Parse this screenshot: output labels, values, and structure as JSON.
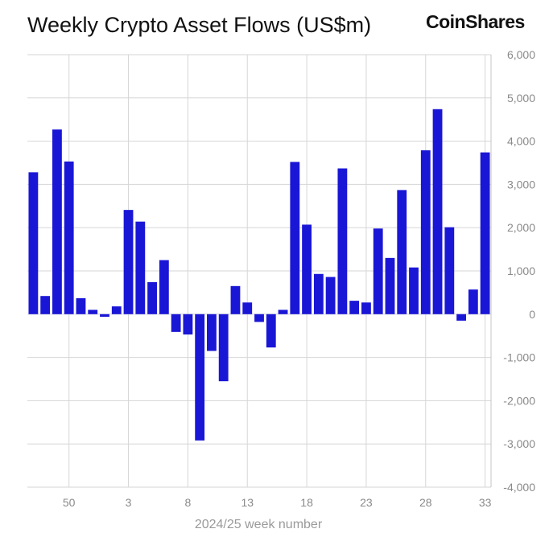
{
  "title": "Weekly Crypto Asset Flows (US$m)",
  "brand": "CoinShares",
  "chart_data": {
    "type": "bar",
    "title": "Weekly Crypto Asset Flows (US$m)",
    "xlabel": "2024/25 week number",
    "ylabel": "",
    "ylim": [
      -4000,
      6000
    ],
    "y_ticks": [
      6000,
      5000,
      4000,
      3000,
      2000,
      1000,
      0,
      -1000,
      -2000,
      -3000,
      -4000
    ],
    "y_tick_labels": [
      "6,000",
      "5,000",
      "4,000",
      "3,000",
      "2,000",
      "1,000",
      "0",
      "-1,000",
      "-2,000",
      "-3,000",
      "-4,000"
    ],
    "y_axis_position": "right",
    "x_tick_labels": [
      "50",
      "3",
      "8",
      "13",
      "18",
      "23",
      "28",
      "33"
    ],
    "categories": [
      "47",
      "48",
      "49",
      "50",
      "51",
      "52",
      "1",
      "2",
      "3",
      "4",
      "5",
      "6",
      "7",
      "8",
      "9",
      "10",
      "11",
      "12",
      "13",
      "14",
      "15",
      "16",
      "17",
      "18",
      "19",
      "20",
      "21",
      "22",
      "23",
      "24",
      "25",
      "26",
      "27",
      "28",
      "29",
      "30",
      "31",
      "32",
      "33"
    ],
    "series": [
      {
        "values": [
          3280,
          420,
          4270,
          3530,
          370,
          100,
          -60,
          180,
          2410,
          2140,
          740,
          1250,
          -410,
          -470,
          -2920,
          -850,
          -1550,
          650,
          270,
          -180,
          -770,
          100,
          3520,
          2070,
          930,
          860,
          3370,
          310,
          270,
          1980,
          1300,
          2870,
          1080,
          3790,
          4740,
          2010,
          -150,
          570,
          3740
        ],
        "color": "#1a16d6"
      }
    ],
    "grid": true,
    "legend": "none"
  }
}
